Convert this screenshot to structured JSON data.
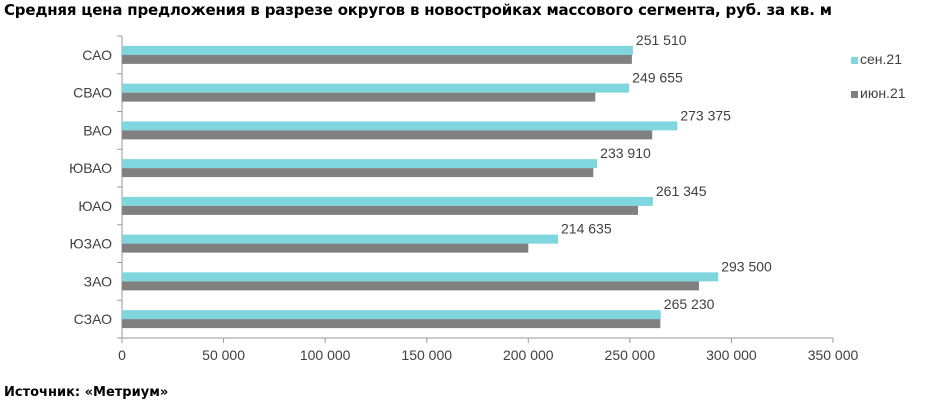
{
  "title": "Средняя цена предложения в разрезе округов в новостройках массового сегмента, руб. за кв. м",
  "source": "Источник: «Метриум»",
  "chart_data": {
    "type": "bar",
    "orientation": "horizontal",
    "categories": [
      "САО",
      "СВАО",
      "ВАО",
      "ЮВАО",
      "ЮАО",
      "ЮЗАО",
      "ЗАО",
      "СЗАО"
    ],
    "series": [
      {
        "name": "сен.21",
        "color": "#7fd6de",
        "values": [
          251510,
          249655,
          273375,
          233910,
          261345,
          214635,
          293500,
          265230
        ],
        "data_labels": [
          "251 510",
          "249 655",
          "273 375",
          "233 910",
          "261 345",
          "214 635",
          "293 500",
          "265 230"
        ]
      },
      {
        "name": "июн.21",
        "color": "#808080",
        "values": [
          251000,
          233000,
          261000,
          232000,
          254000,
          200000,
          284000,
          265000
        ]
      }
    ],
    "xlim": [
      0,
      350000
    ],
    "xticks": [
      0,
      50000,
      100000,
      150000,
      200000,
      250000,
      300000,
      350000
    ],
    "xtick_labels": [
      "0",
      "50 000",
      "100 000",
      "150 000",
      "200 000",
      "250 000",
      "300 000",
      "350 000"
    ],
    "legend_position": "right",
    "grid": false
  }
}
